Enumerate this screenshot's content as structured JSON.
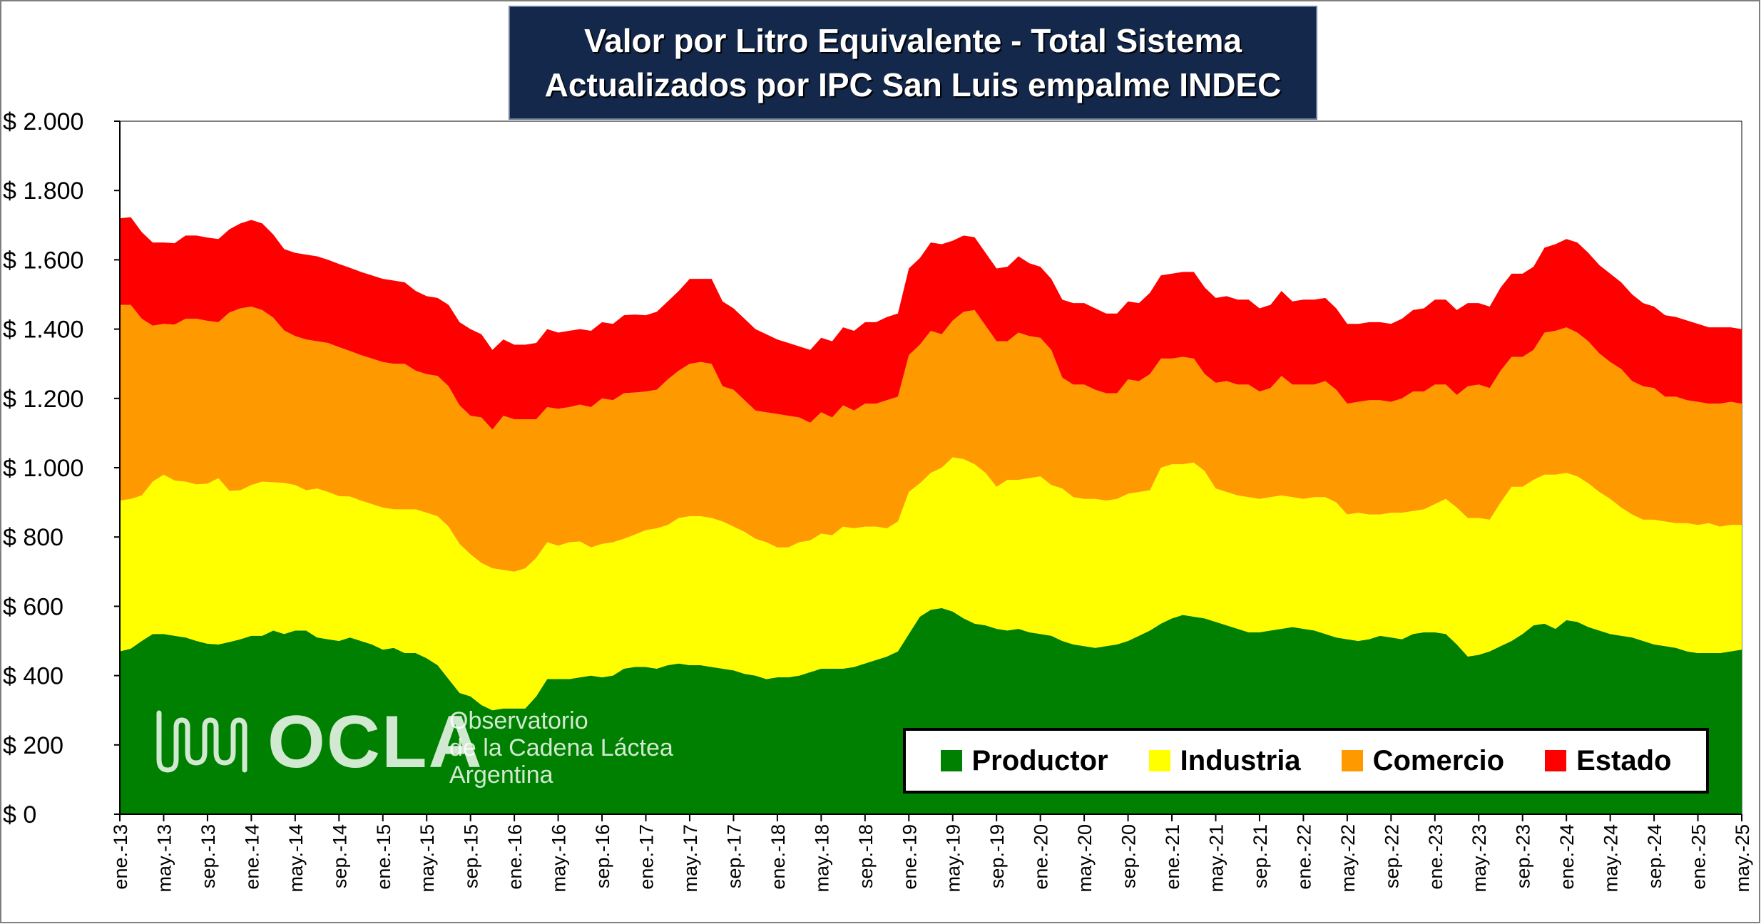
{
  "title": {
    "line1": "Valor por Litro Equivalente - Total Sistema",
    "line2": "Actualizados por IPC San Luis empalme INDEC"
  },
  "logo": {
    "word": "OCLA",
    "line1": "Observatorio",
    "line2": "de la Cadena Láctea",
    "line3": "Argentina"
  },
  "legend": [
    {
      "name": "Productor",
      "color": "#008000"
    },
    {
      "name": "Industria",
      "color": "#ffff00"
    },
    {
      "name": "Comercio",
      "color": "#ff9900"
    },
    {
      "name": "Estado",
      "color": "#ff0000"
    }
  ],
  "chart_data": {
    "type": "area",
    "stacked": true,
    "title": "Valor por Litro Equivalente - Total Sistema",
    "subtitle": "Actualizados por IPC San Luis empalme INDEC",
    "ylim": [
      0,
      2000
    ],
    "y_ticks": [
      0,
      200,
      400,
      600,
      800,
      1000,
      1200,
      1400,
      1600,
      1800,
      2000
    ],
    "y_tick_labels": [
      "$ 0",
      "$ 200",
      "$ 400",
      "$ 600",
      "$ 800",
      "$ 1.000",
      "$ 1.200",
      "$ 1.400",
      "$ 1.600",
      "$ 1.800",
      "$ 2.000"
    ],
    "x_start": "ene.-13",
    "x_end": "may.-25",
    "x_tick_labels": [
      "ene.-13",
      "may.-13",
      "sep.-13",
      "ene.-14",
      "may.-14",
      "sep.-14",
      "ene.-15",
      "may.-15",
      "sep.-15",
      "ene.-16",
      "may.-16",
      "sep.-16",
      "ene.-17",
      "may.-17",
      "sep.-17",
      "ene.-18",
      "may.-18",
      "sep.-18",
      "ene.-19",
      "may.-19",
      "sep.-19",
      "ene.-20",
      "may.-20",
      "sep.-20",
      "ene.-21",
      "may.-21",
      "sep.-21",
      "ene.-22",
      "may.-22",
      "sep.-22",
      "ene.-23",
      "may.-23",
      "sep.-23",
      "ene.-24",
      "may.-24",
      "sep.-24",
      "ene.-25",
      "may.-25"
    ],
    "grid": false,
    "legend_position": "bottom-right",
    "series": [
      {
        "name": "Productor",
        "color": "#008000",
        "values": [
          470,
          478,
          500,
          520,
          520,
          515,
          510,
          500,
          492,
          490,
          497,
          505,
          515,
          515,
          530,
          520,
          530,
          530,
          510,
          505,
          500,
          510,
          500,
          490,
          475,
          480,
          465,
          465,
          450,
          430,
          390,
          350,
          340,
          315,
          300,
          305,
          305,
          305,
          340,
          390,
          390,
          390,
          395,
          400,
          395,
          400,
          420,
          425,
          425,
          420,
          430,
          435,
          430,
          430,
          425,
          420,
          415,
          405,
          400,
          390,
          395,
          395,
          400,
          410,
          420,
          420,
          420,
          425,
          435,
          445,
          455,
          470,
          520,
          570,
          590,
          595,
          585,
          565,
          550,
          545,
          535,
          530,
          535,
          525,
          520,
          515,
          500,
          490,
          485,
          480,
          485,
          490,
          500,
          515,
          530,
          550,
          565,
          575,
          570,
          565,
          555,
          545,
          535,
          525,
          525,
          530,
          535,
          540,
          535,
          530,
          520,
          510,
          505,
          500,
          505,
          515,
          510,
          505,
          520,
          525,
          525,
          520,
          490,
          455,
          460,
          470,
          485,
          500,
          520,
          545,
          550,
          535,
          560,
          555,
          540,
          530,
          520,
          515,
          510,
          500,
          490,
          485,
          480,
          470,
          465,
          465,
          465,
          470,
          475
        ]
      },
      {
        "name": "Industria",
        "color": "#ffff00",
        "values": [
          435,
          432,
          420,
          440,
          460,
          448,
          450,
          452,
          462,
          480,
          436,
          430,
          435,
          445,
          428,
          436,
          420,
          405,
          430,
          425,
          418,
          407,
          405,
          405,
          410,
          400,
          415,
          415,
          420,
          430,
          440,
          430,
          410,
          410,
          410,
          400,
          395,
          405,
          400,
          395,
          385,
          395,
          392,
          370,
          385,
          385,
          375,
          382,
          395,
          405,
          405,
          420,
          430,
          430,
          430,
          425,
          415,
          410,
          395,
          395,
          375,
          375,
          385,
          380,
          390,
          385,
          410,
          400,
          395,
          385,
          370,
          375,
          410,
          385,
          395,
          405,
          445,
          460,
          460,
          440,
          410,
          435,
          430,
          445,
          455,
          435,
          440,
          425,
          425,
          430,
          420,
          420,
          425,
          415,
          405,
          450,
          445,
          435,
          445,
          425,
          385,
          385,
          385,
          390,
          385,
          385,
          385,
          375,
          375,
          385,
          395,
          390,
          360,
          370,
          360,
          350,
          360,
          365,
          355,
          355,
          370,
          390,
          395,
          400,
          395,
          380,
          415,
          445,
          425,
          420,
          430,
          445,
          425,
          420,
          415,
          400,
          390,
          370,
          355,
          350,
          360,
          360,
          360,
          370,
          370,
          375,
          365,
          365,
          360
        ]
      },
      {
        "name": "Comercio",
        "color": "#ff9900",
        "values": [
          565,
          560,
          510,
          450,
          435,
          450,
          470,
          478,
          470,
          450,
          515,
          525,
          515,
          495,
          475,
          440,
          430,
          435,
          425,
          430,
          430,
          420,
          420,
          420,
          420,
          420,
          420,
          400,
          400,
          405,
          405,
          400,
          400,
          420,
          400,
          445,
          440,
          430,
          400,
          390,
          395,
          390,
          395,
          405,
          420,
          410,
          420,
          410,
          400,
          400,
          420,
          425,
          440,
          445,
          445,
          390,
          395,
          380,
          370,
          375,
          385,
          380,
          360,
          340,
          350,
          340,
          350,
          340,
          355,
          355,
          370,
          360,
          395,
          400,
          410,
          385,
          395,
          425,
          445,
          425,
          420,
          400,
          425,
          410,
          400,
          390,
          320,
          325,
          330,
          315,
          310,
          305,
          330,
          320,
          335,
          315,
          305,
          310,
          300,
          280,
          305,
          320,
          320,
          325,
          310,
          315,
          345,
          325,
          330,
          325,
          335,
          325,
          320,
          320,
          330,
          330,
          320,
          330,
          345,
          340,
          345,
          330,
          325,
          380,
          385,
          380,
          380,
          375,
          375,
          375,
          410,
          415,
          420,
          415,
          410,
          400,
          395,
          400,
          385,
          385,
          380,
          360,
          365,
          355,
          355,
          345,
          355,
          355,
          350
        ]
      },
      {
        "name": "Estado",
        "color": "#ff0000",
        "values": [
          250,
          253,
          250,
          240,
          235,
          235,
          240,
          240,
          240,
          240,
          240,
          245,
          250,
          250,
          240,
          235,
          240,
          245,
          245,
          240,
          240,
          240,
          240,
          240,
          240,
          240,
          235,
          230,
          225,
          225,
          235,
          240,
          250,
          240,
          230,
          220,
          215,
          215,
          220,
          225,
          220,
          220,
          218,
          220,
          220,
          220,
          225,
          225,
          220,
          225,
          225,
          230,
          245,
          240,
          245,
          245,
          235,
          235,
          235,
          225,
          215,
          210,
          205,
          210,
          215,
          220,
          225,
          230,
          235,
          235,
          240,
          240,
          250,
          250,
          255,
          260,
          230,
          220,
          210,
          210,
          210,
          215,
          220,
          210,
          205,
          205,
          225,
          235,
          235,
          235,
          230,
          230,
          225,
          225,
          235,
          240,
          245,
          245,
          250,
          250,
          245,
          245,
          245,
          245,
          240,
          240,
          245,
          240,
          245,
          245,
          240,
          235,
          230,
          225,
          225,
          225,
          225,
          230,
          235,
          240,
          245,
          245,
          245,
          240,
          235,
          235,
          240,
          240,
          240,
          240,
          245,
          250,
          255,
          260,
          255,
          255,
          255,
          250,
          250,
          240,
          235,
          235,
          230,
          230,
          225,
          220,
          220,
          215,
          215
        ]
      }
    ]
  }
}
